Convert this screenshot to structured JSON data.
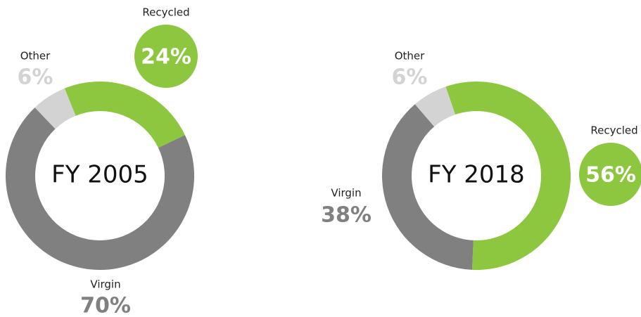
{
  "chart_data": [
    {
      "type": "pie",
      "donut": true,
      "title": "FY 2005",
      "categories": [
        "Recycled",
        "Virgin",
        "Other"
      ],
      "values": [
        24,
        70,
        6
      ],
      "value_labels": [
        "24%",
        "70%",
        "6%"
      ],
      "colors": [
        "#8dc63f",
        "#808080",
        "#d3d3d3"
      ]
    },
    {
      "type": "pie",
      "donut": true,
      "title": "FY 2018",
      "categories": [
        "Recycled",
        "Virgin",
        "Other"
      ],
      "values": [
        56,
        38,
        6
      ],
      "value_labels": [
        "56%",
        "38%",
        "6%"
      ],
      "colors": [
        "#8dc63f",
        "#808080",
        "#d3d3d3"
      ]
    }
  ]
}
